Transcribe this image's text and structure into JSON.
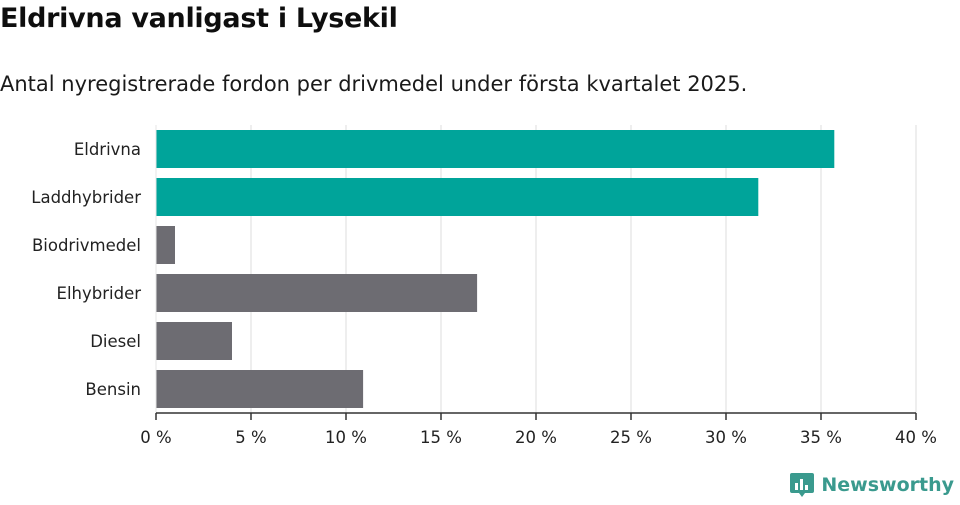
{
  "title": "Eldrivna vanligast i Lysekil",
  "subtitle": "Antal nyregistrerade fordon per drivmedel under första kvartalet 2025.",
  "brand": {
    "name": "Newsworthy",
    "color": "#3a9a8e"
  },
  "chart_data": {
    "type": "bar",
    "orientation": "horizontal",
    "categories": [
      "Eldrivna",
      "Laddhybrider",
      "Biodrivmedel",
      "Elhybrider",
      "Diesel",
      "Bensin"
    ],
    "values": [
      35.7,
      31.7,
      1.0,
      16.9,
      4.0,
      10.9
    ],
    "unit": "%",
    "xlim": [
      0,
      40
    ],
    "xticks": [
      0,
      5,
      10,
      15,
      20,
      25,
      30,
      35,
      40
    ],
    "xtick_labels": [
      "0 %",
      "5 %",
      "10 %",
      "15 %",
      "20 %",
      "25 %",
      "30 %",
      "35 %",
      "40 %"
    ],
    "grid": true,
    "colors": {
      "highlight": "#00a49a",
      "default": "#6d6c72",
      "grid": "#dddddd",
      "axis": "#333333"
    },
    "highlighted": [
      "Eldrivna",
      "Laddhybrider"
    ]
  }
}
